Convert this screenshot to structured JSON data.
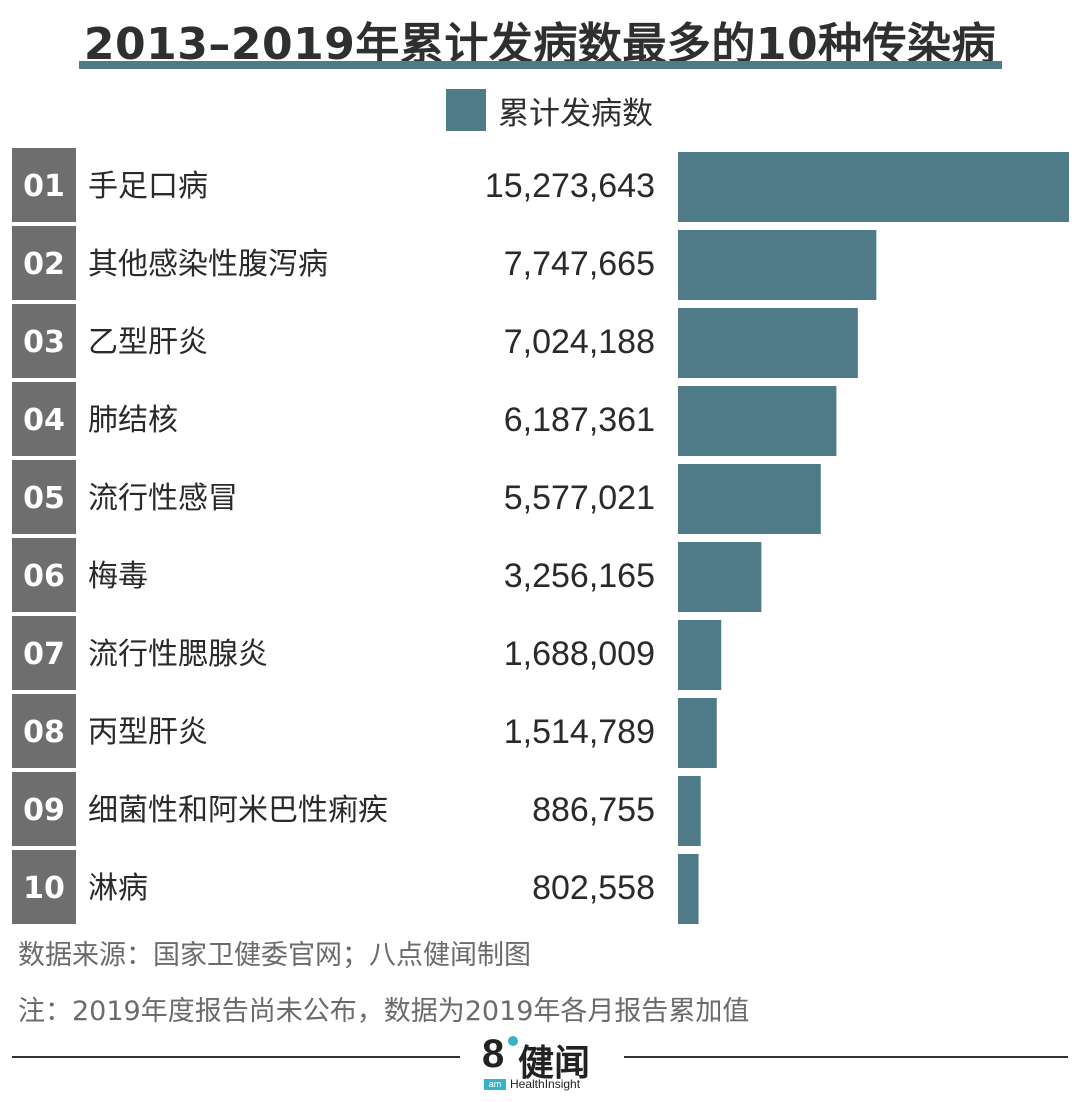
{
  "header": {
    "title": "2013–2019年累计发病数最多的10种传染病"
  },
  "colors": {
    "accent": "#4f7a87",
    "rank_box": "#6e6e6e"
  },
  "chart_data": {
    "type": "bar",
    "orientation": "horizontal",
    "title": "2013–2019年累计发病数最多的10种传染病",
    "legend": "累计发病数",
    "ranks": [
      "01",
      "02",
      "03",
      "04",
      "05",
      "06",
      "07",
      "08",
      "09",
      "10"
    ],
    "categories": [
      "手足口病",
      "其他感染性腹泻病",
      "乙型肝炎",
      "肺结核",
      "流行性感冒",
      "梅毒",
      "流行性腮腺炎",
      "丙型肝炎",
      "细菌性和阿米巴性痢疾",
      "淋病"
    ],
    "values": [
      15273643,
      7747665,
      7024188,
      6187361,
      5577021,
      3256165,
      1688009,
      1514789,
      886755,
      802558
    ],
    "value_labels": [
      "15,273,643",
      "7,747,665",
      "7,024,188",
      "6,187,361",
      "5,577,021",
      "3,256,165",
      "1,688,009",
      "1,514,789",
      "886,755",
      "802,558"
    ],
    "series": [
      {
        "name": "累计发病数"
      }
    ]
  },
  "footer": {
    "source": "数据来源：国家卫健委官网；八点健闻制图",
    "note": "注：2019年度报告尚未公布，数据为2019年各月报告累加值"
  },
  "logo": {
    "mark": "8",
    "name": "健闻",
    "badge": "am",
    "sub": "HealthInsight"
  }
}
